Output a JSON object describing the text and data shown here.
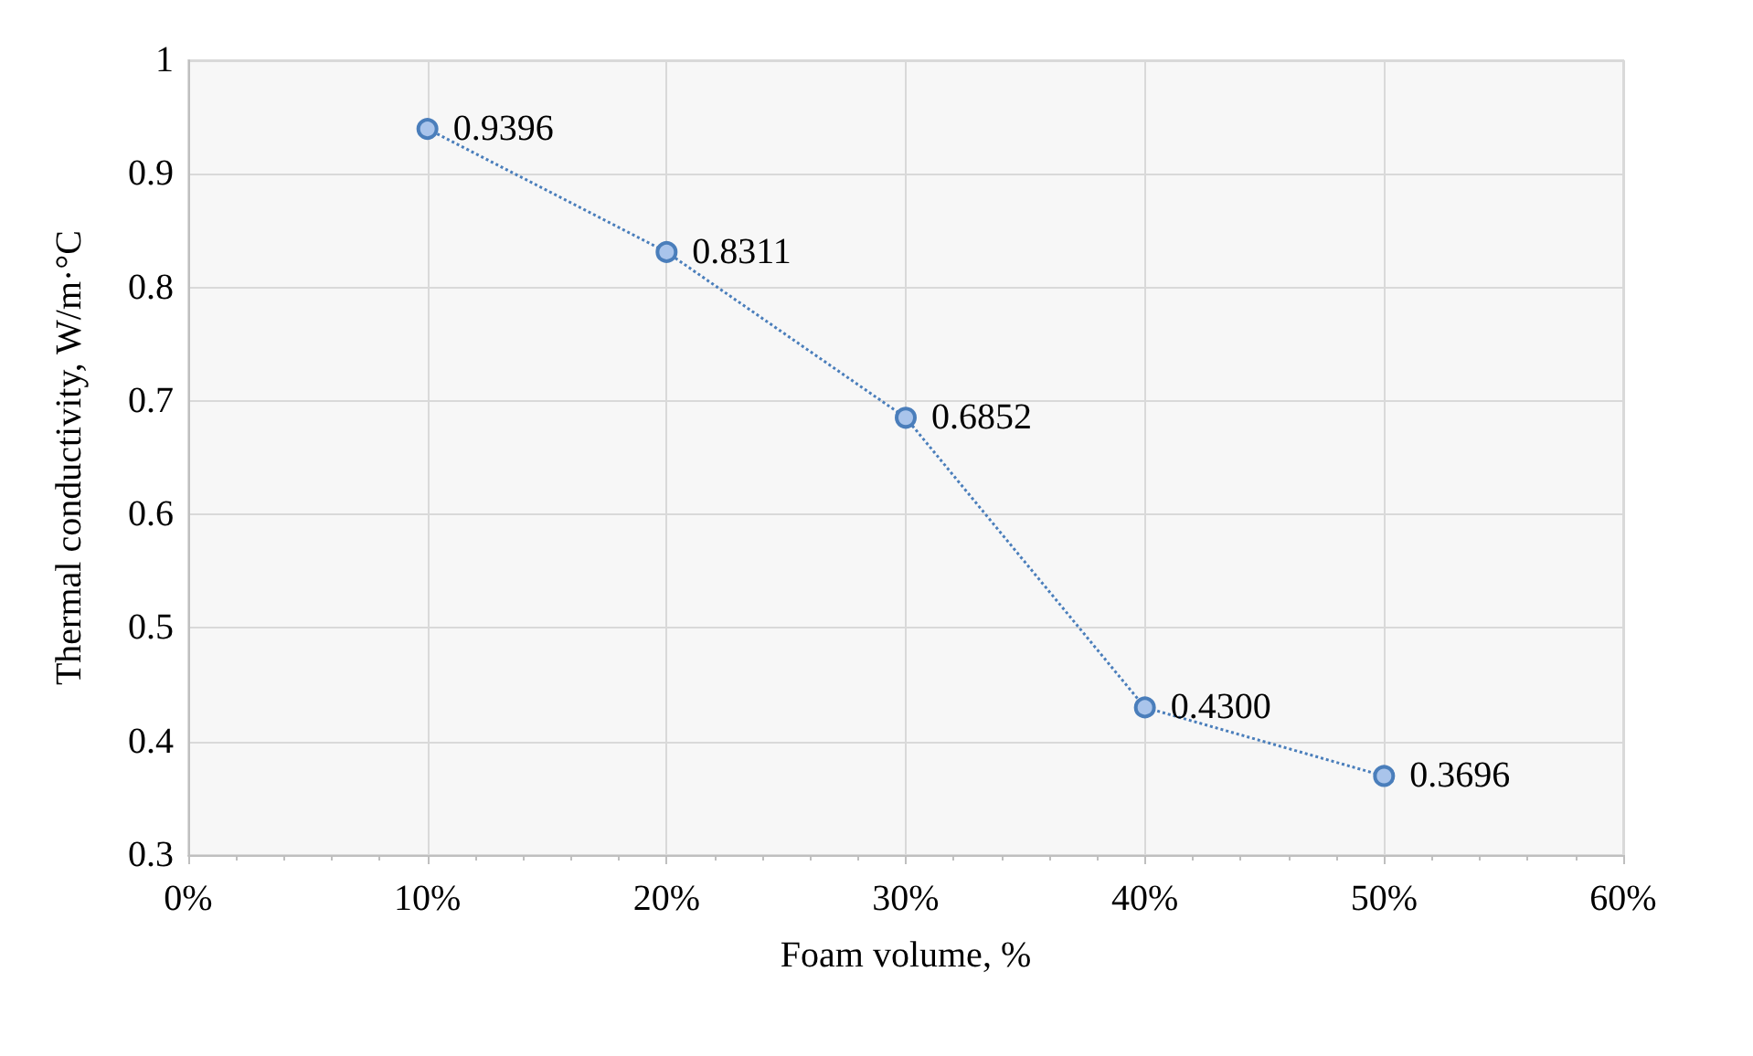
{
  "chart_data": {
    "type": "line",
    "xlabel": "Foam volume, %",
    "ylabel": "Thermal conductivity, W/m·°C",
    "x": [
      10,
      20,
      30,
      40,
      50
    ],
    "series": [
      {
        "color": "#4a7ebb",
        "values": [
          0.9396,
          0.8311,
          0.6852,
          0.43,
          0.3696
        ],
        "value_labels": [
          "0.9396",
          "0.8311",
          "0.6852",
          "0.4300",
          "0.3696"
        ]
      }
    ],
    "xlim": [
      0,
      60
    ],
    "xticks": [
      {
        "value": 0,
        "label": "0%"
      },
      {
        "value": 10,
        "label": "10%"
      },
      {
        "value": 20,
        "label": "20%"
      },
      {
        "value": 30,
        "label": "30%"
      },
      {
        "value": 40,
        "label": "40%"
      },
      {
        "value": 50,
        "label": "50%"
      },
      {
        "value": 60,
        "label": "60%"
      }
    ],
    "ylim": [
      0.3,
      1
    ],
    "yticks": [
      0.3,
      0.4,
      0.5,
      0.6,
      0.7,
      0.8,
      0.9,
      1
    ],
    "grid": true,
    "marker": "circle",
    "line_style": "dotted"
  }
}
